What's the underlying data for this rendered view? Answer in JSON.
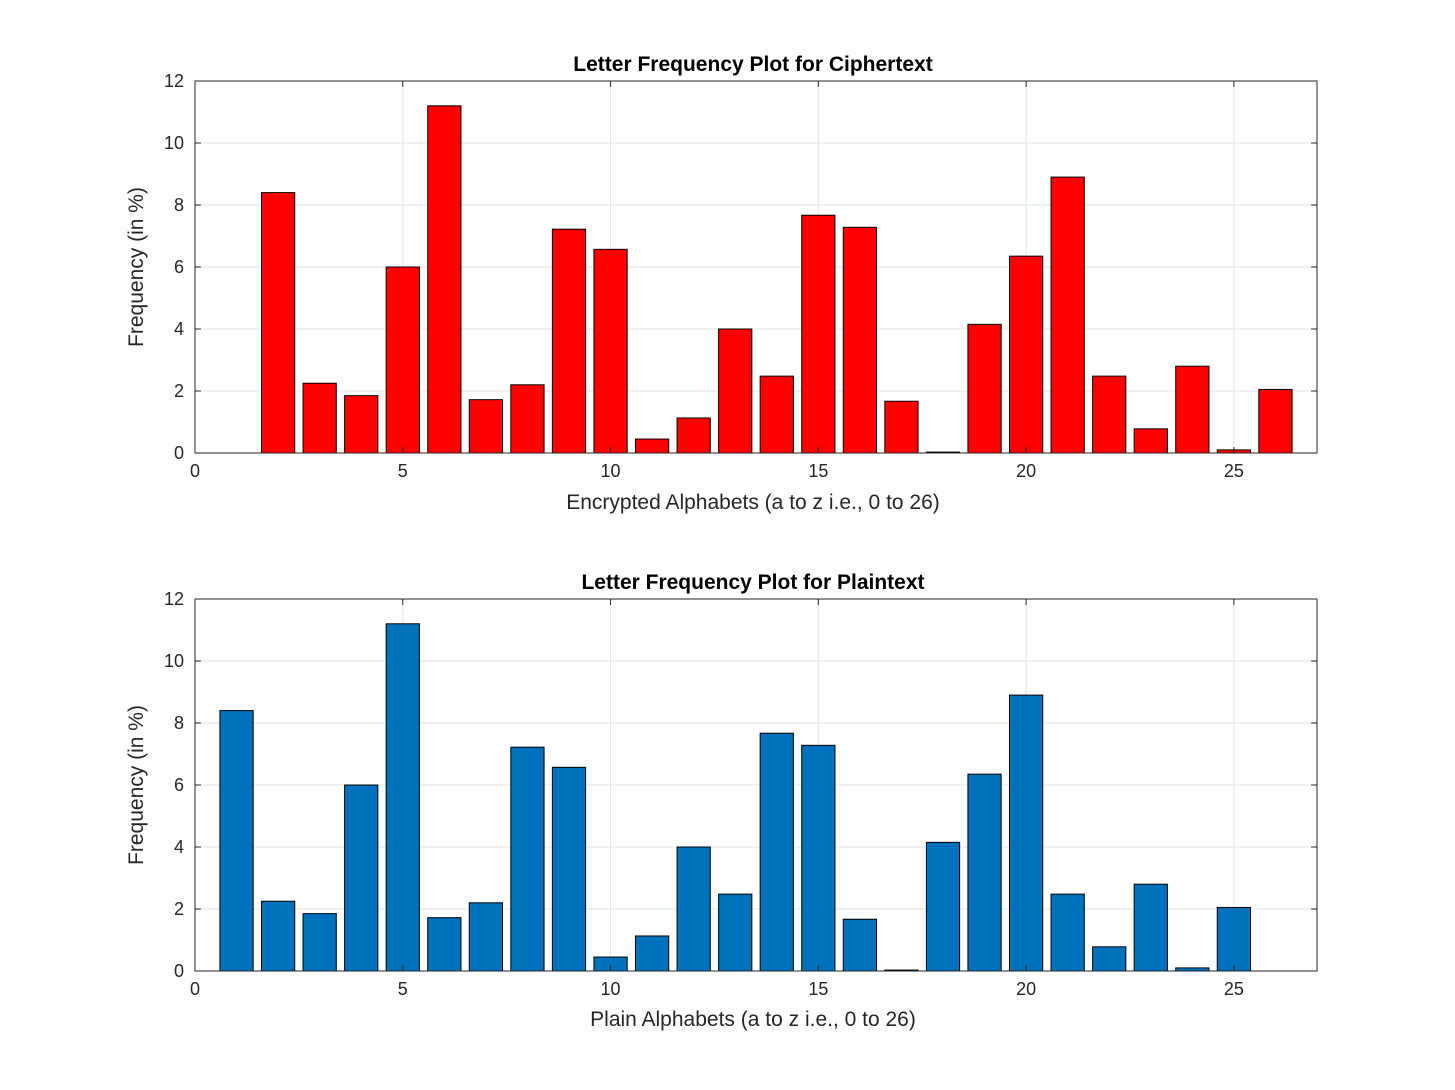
{
  "chart_data": [
    {
      "type": "bar",
      "title": "Letter Frequency Plot for Ciphertext",
      "xlabel": "Encrypted Alphabets (a to z i.e., 0 to 26)",
      "ylabel": "Frequency (in %)",
      "xlim": [
        0,
        27
      ],
      "ylim": [
        0,
        12
      ],
      "xticks": [
        0,
        5,
        10,
        15,
        20,
        25
      ],
      "yticks": [
        0,
        2,
        4,
        6,
        8,
        10,
        12
      ],
      "grid": true,
      "bar_color": "#ff0000",
      "x": [
        1,
        2,
        3,
        4,
        5,
        6,
        7,
        8,
        9,
        10,
        11,
        12,
        13,
        14,
        15,
        16,
        17,
        18,
        19,
        20,
        21,
        22,
        23,
        24,
        25,
        26
      ],
      "values": [
        0,
        8.4,
        2.25,
        1.85,
        6.0,
        11.2,
        1.72,
        2.2,
        7.22,
        6.57,
        0.45,
        1.13,
        4.0,
        2.48,
        7.67,
        7.28,
        1.67,
        0.03,
        4.15,
        6.35,
        8.9,
        2.48,
        0.78,
        2.8,
        0.1,
        2.05
      ]
    },
    {
      "type": "bar",
      "title": "Letter Frequency Plot for Plaintext",
      "xlabel": "Plain Alphabets (a to z i.e., 0 to 26)",
      "ylabel": "Frequency (in %)",
      "xlim": [
        0,
        27
      ],
      "ylim": [
        0,
        12
      ],
      "xticks": [
        0,
        5,
        10,
        15,
        20,
        25
      ],
      "yticks": [
        0,
        2,
        4,
        6,
        8,
        10,
        12
      ],
      "grid": true,
      "bar_color": "#0072bd",
      "x": [
        1,
        2,
        3,
        4,
        5,
        6,
        7,
        8,
        9,
        10,
        11,
        12,
        13,
        14,
        15,
        16,
        17,
        18,
        19,
        20,
        21,
        22,
        23,
        24,
        25,
        26
      ],
      "values": [
        8.4,
        2.25,
        1.85,
        6.0,
        11.2,
        1.72,
        2.2,
        7.22,
        6.57,
        0.45,
        1.13,
        4.0,
        2.48,
        7.67,
        7.28,
        1.67,
        0.03,
        4.15,
        6.35,
        8.9,
        2.48,
        0.78,
        2.8,
        0.1,
        2.05,
        0
      ]
    }
  ]
}
